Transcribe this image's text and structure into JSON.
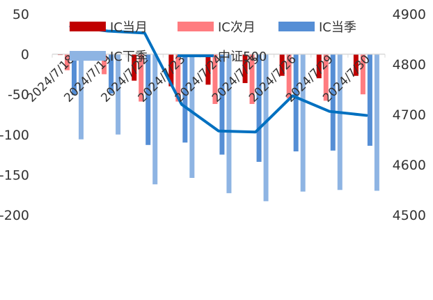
{
  "chart_data": {
    "type": "bar",
    "categories": [
      "2024/7/18",
      "2024/7/19",
      "2024/7/22",
      "2024/7/23",
      "2024/7/24",
      "2024/7/25",
      "2024/7/26",
      "2024/7/29",
      "2024/7/30"
    ],
    "series": [
      {
        "name": "IC当月",
        "type": "bar",
        "axis": "left",
        "color": "#c00000",
        "values": [
          -1,
          -5,
          -33,
          -40,
          -38,
          -36,
          -27,
          -30,
          -27
        ]
      },
      {
        "name": "IC次月",
        "type": "bar",
        "axis": "left",
        "color": "#ff7c80",
        "values": [
          -20,
          -25,
          -59,
          -59,
          -62,
          -62,
          -55,
          -58,
          -50
        ]
      },
      {
        "name": "IC当季",
        "type": "bar",
        "axis": "left",
        "color": "#558ed5",
        "values": [
          -51,
          -49,
          -113,
          -110,
          -125,
          -134,
          -121,
          -120,
          -114
        ]
      },
      {
        "name": "IC下季",
        "type": "bar",
        "axis": "left",
        "color": "#8eb4e3",
        "values": [
          -106,
          -100,
          -162,
          -154,
          -173,
          -183,
          -171,
          -169,
          -170
        ]
      },
      {
        "name": "中证500",
        "type": "line",
        "axis": "right",
        "color": "#0070c0",
        "values": [
          4875,
          4866,
          4862,
          4720,
          4667,
          4665,
          4737,
          4706,
          4698
        ]
      }
    ],
    "ylim_left": [
      -200,
      50
    ],
    "ylim_right": [
      4500,
      4900
    ],
    "yticks_left": [
      "50",
      "0",
      "-50",
      "-100",
      "-150",
      "-200"
    ],
    "yticks_right": [
      "4900",
      "4800",
      "4700",
      "4600",
      "4500"
    ],
    "grid": false,
    "legend_placement": "top"
  }
}
